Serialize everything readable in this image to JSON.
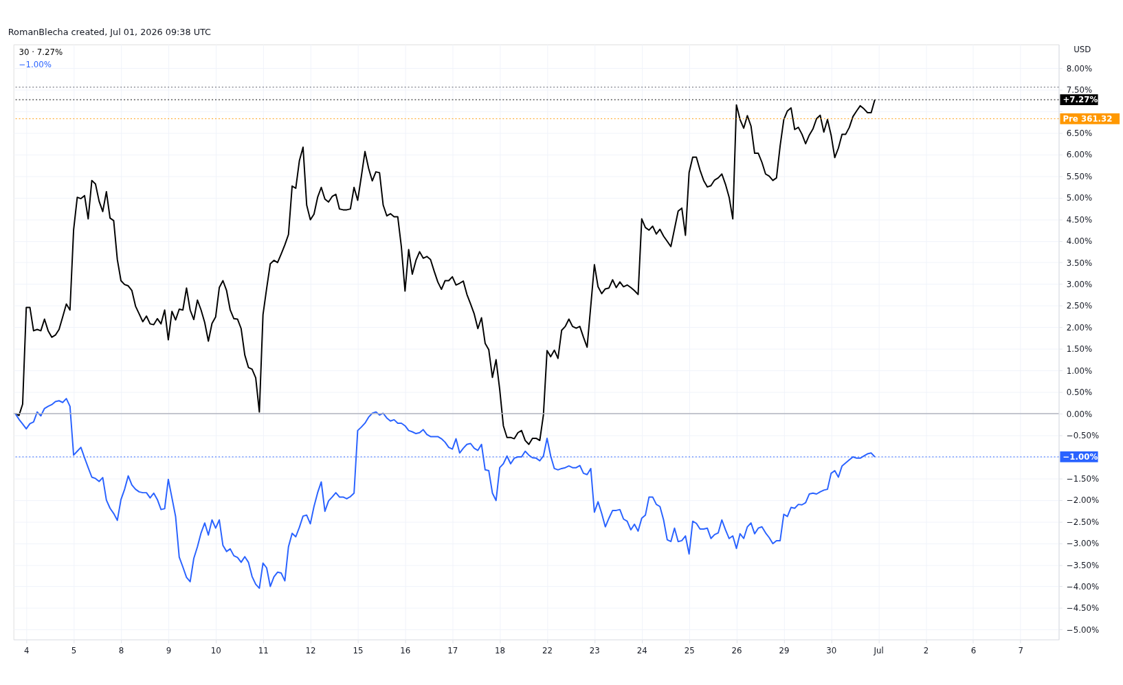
{
  "chart_data": {
    "type": "line",
    "annotations": [
      "RomanBlecha created, Jul 01, 2026 09:38 UTC",
      "30 · 7.27%",
      "−1.00%",
      "USD"
    ],
    "categories": [
      null,
      null,
      null,
      "4",
      null,
      null,
      null,
      null,
      null,
      null,
      null,
      null,
      null,
      null,
      null,
      null,
      "5",
      null,
      null,
      null,
      null,
      null,
      null,
      null,
      null,
      null,
      null,
      null,
      null,
      "8",
      null,
      null,
      null,
      null,
      null,
      null,
      null,
      null,
      null,
      null,
      null,
      null,
      "9",
      null,
      null,
      null,
      null,
      null,
      null,
      null,
      null,
      null,
      null,
      null,
      null,
      "10",
      null,
      null,
      null,
      null,
      null,
      null,
      null,
      null,
      null,
      null,
      null,
      null,
      "11",
      null,
      null,
      null,
      null,
      null,
      null,
      null,
      null,
      null,
      null,
      null,
      null,
      "12",
      null,
      null,
      null,
      null,
      null,
      null,
      null,
      null,
      null,
      null,
      null,
      null,
      "15",
      null,
      null,
      null,
      null,
      null,
      null,
      null,
      null,
      null,
      null,
      null,
      null,
      "16",
      null,
      null,
      null,
      null,
      null,
      null,
      null,
      null,
      null,
      null,
      null,
      null,
      "17",
      null,
      null,
      null,
      null,
      null,
      null,
      null,
      null,
      null,
      null,
      null,
      null,
      "18",
      null,
      null,
      null,
      null,
      null,
      null,
      null,
      null,
      null,
      null,
      null,
      null,
      "22",
      null,
      null,
      null,
      null,
      null,
      null,
      null,
      null,
      null,
      null,
      null,
      null,
      "23",
      null,
      null,
      null,
      null,
      null,
      null,
      null,
      null,
      null,
      null,
      null,
      null,
      "24",
      null,
      null,
      null,
      null,
      null,
      null,
      null,
      null,
      null,
      null,
      null,
      null,
      "25",
      null,
      null,
      null,
      null,
      null,
      null,
      null,
      null,
      null,
      null,
      null,
      null,
      "26",
      null,
      null,
      null,
      null,
      null,
      null,
      null,
      null,
      null,
      null,
      null,
      null,
      "29",
      null,
      null,
      null,
      null,
      null,
      null,
      null,
      null,
      null,
      null,
      null,
      null,
      "30",
      null,
      null,
      null,
      null,
      null,
      null,
      null,
      null,
      null,
      null,
      null,
      null,
      "Jul",
      null,
      null,
      null,
      null,
      null,
      null,
      null,
      null,
      null,
      null,
      null,
      null,
      "2",
      null,
      null,
      null,
      null,
      null,
      null,
      null,
      null,
      null,
      null,
      null,
      null,
      "6",
      null,
      null,
      null,
      null,
      null,
      null,
      null,
      null,
      null,
      null,
      null,
      null,
      "7",
      null,
      null,
      null,
      null,
      null,
      null,
      null,
      null,
      null,
      null
    ],
    "ylim": [
      -5.23,
      8.55
    ],
    "yticks": [
      {
        "value": -5,
        "label": "−5.00%"
      },
      {
        "value": -4.5,
        "label": "−4.50%"
      },
      {
        "value": -4,
        "label": "−4.00%"
      },
      {
        "value": -3.5,
        "label": "−3.50%"
      },
      {
        "value": -3,
        "label": "−3.00%"
      },
      {
        "value": -2.5,
        "label": "−2.50%"
      },
      {
        "value": -2,
        "label": "−2.00%"
      },
      {
        "value": -1.5,
        "label": "−1.50%"
      },
      {
        "value": -1,
        "label": null
      },
      {
        "value": -0.5,
        "label": "−0.50%"
      },
      {
        "value": 0,
        "label": "0.00%"
      },
      {
        "value": 0.5,
        "label": "0.50%"
      },
      {
        "value": 1,
        "label": "1.00%"
      },
      {
        "value": 1.5,
        "label": "1.50%"
      },
      {
        "value": 2,
        "label": "2.00%"
      },
      {
        "value": 2.5,
        "label": "2.50%"
      },
      {
        "value": 3,
        "label": "3.00%"
      },
      {
        "value": 3.5,
        "label": "3.50%"
      },
      {
        "value": 4,
        "label": "4.00%"
      },
      {
        "value": 4.5,
        "label": "4.50%"
      },
      {
        "value": 5,
        "label": "5.00%"
      },
      {
        "value": 5.5,
        "label": "5.50%"
      },
      {
        "value": 6,
        "label": "6.00%"
      },
      {
        "value": 6.5,
        "label": "6.50%"
      },
      {
        "value": 7,
        "label": null
      },
      {
        "value": 7.5,
        "label": "7.50%"
      },
      {
        "value": 8,
        "label": "8.00%"
      }
    ],
    "grid": true,
    "marker": "none",
    "line_style": "solid",
    "ref_lines": [
      {
        "axis": "y",
        "value": 0,
        "label": null,
        "color": "#b2b5be",
        "line_style": "solid"
      },
      {
        "axis": "y",
        "value": 7.56,
        "label": null,
        "color": "#787b86",
        "line_style": "dotted"
      },
      {
        "axis": "y",
        "value": 7.27,
        "label": "+7.27%",
        "color": "#000000",
        "line_style": "dotted"
      },
      {
        "axis": "y",
        "value": 6.83,
        "label": "Pre 361.32",
        "color": "#ff9800",
        "line_style": "dotted"
      },
      {
        "axis": "y",
        "value": -1.0,
        "label": "−1.00%",
        "color": "#2962ff",
        "line_style": "dotted"
      }
    ],
    "series": [
      {
        "color": "#000000",
        "values": [
          0,
          -0.04,
          0.22,
          2.46,
          2.46,
          1.92,
          1.95,
          1.92,
          2.19,
          1.92,
          1.77,
          1.82,
          1.95,
          2.24,
          2.54,
          2.4,
          4.26,
          5.01,
          4.98,
          5.05,
          4.51,
          5.4,
          5.32,
          4.92,
          4.68,
          5.14,
          4.53,
          4.47,
          3.57,
          3.08,
          2.99,
          2.96,
          2.85,
          2.49,
          2.31,
          2.13,
          2.26,
          2.08,
          2.06,
          2.2,
          2.08,
          2.4,
          1.71,
          2.37,
          2.17,
          2.42,
          2.4,
          2.91,
          2.4,
          2.18,
          2.63,
          2.4,
          2.11,
          1.68,
          2.09,
          2.24,
          2.92,
          3.08,
          2.85,
          2.4,
          2.2,
          2.19,
          1.97,
          1.36,
          1.07,
          1.03,
          0.83,
          0.04,
          2.29,
          2.9,
          3.47,
          3.55,
          3.5,
          3.7,
          3.91,
          4.15,
          5.27,
          5.22,
          5.86,
          6.17,
          4.83,
          4.49,
          4.62,
          5.01,
          5.24,
          4.97,
          4.9,
          5.03,
          5.08,
          4.74,
          4.72,
          4.72,
          4.74,
          5.24,
          4.94,
          5.49,
          6.07,
          5.68,
          5.39,
          5.6,
          5.58,
          4.83,
          4.58,
          4.63,
          4.56,
          4.56,
          3.86,
          2.84,
          3.8,
          3.23,
          3.55,
          3.75,
          3.6,
          3.64,
          3.57,
          3.3,
          3.05,
          2.88,
          3.08,
          3.08,
          3.17,
          2.98,
          3.02,
          3.07,
          2.76,
          2.54,
          2.31,
          1.97,
          2.22,
          1.63,
          1.48,
          0.84,
          1.25,
          0.56,
          -0.28,
          -0.55,
          -0.55,
          -0.58,
          -0.44,
          -0.39,
          -0.62,
          -0.71,
          -0.57,
          -0.57,
          -0.62,
          -0.03,
          1.46,
          1.32,
          1.47,
          1.28,
          1.93,
          2.02,
          2.19,
          2.02,
          1.98,
          2.02,
          1.77,
          1.54,
          2.49,
          3.45,
          2.94,
          2.78,
          2.89,
          2.91,
          3.1,
          2.92,
          3.05,
          2.94,
          2.98,
          2.92,
          2.85,
          2.76,
          4.51,
          4.31,
          4.25,
          4.34,
          4.16,
          4.27,
          4.11,
          3.99,
          3.87,
          4.28,
          4.69,
          4.76,
          4.13,
          5.58,
          5.94,
          5.94,
          5.64,
          5.4,
          5.25,
          5.28,
          5.41,
          5.46,
          5.55,
          5.31,
          5.01,
          4.51,
          7.15,
          6.81,
          6.61,
          6.9,
          6.66,
          6.03,
          6.03,
          5.82,
          5.55,
          5.5,
          5.4,
          5.46,
          6.2,
          6.81,
          7.01,
          7.08,
          6.58,
          6.63,
          6.47,
          6.25,
          6.45,
          6.59,
          6.83,
          6.91,
          6.52,
          6.81,
          6.45,
          5.93,
          6.15,
          6.47,
          6.47,
          6.63,
          6.88,
          7.01,
          7.13,
          7.06,
          6.97,
          6.97,
          7.27,
          null,
          null,
          null,
          null,
          null,
          null,
          null,
          null,
          null,
          null,
          null,
          null,
          null,
          null,
          null,
          null,
          null,
          null,
          null,
          null,
          null,
          null,
          null,
          null,
          null,
          null,
          null,
          null,
          null,
          null,
          null,
          null,
          null,
          null,
          null,
          null,
          null,
          null,
          null,
          null,
          null,
          null,
          null,
          null,
          null,
          null,
          null,
          null,
          null,
          null
        ]
      },
      {
        "color": "#2962ff",
        "values": [
          0,
          -0.13,
          -0.24,
          -0.35,
          -0.23,
          -0.19,
          0.04,
          -0.05,
          0.12,
          0.17,
          0.21,
          0.28,
          0.3,
          0.26,
          0.35,
          0.17,
          -0.96,
          -0.87,
          -0.78,
          -1.02,
          -1.25,
          -1.47,
          -1.5,
          -1.57,
          -1.48,
          -2.0,
          -2.19,
          -2.31,
          -2.47,
          -1.99,
          -1.75,
          -1.44,
          -1.65,
          -1.75,
          -1.81,
          -1.83,
          -1.83,
          -1.95,
          -1.84,
          -1.99,
          -2.22,
          -2.2,
          -1.52,
          -1.95,
          -2.38,
          -3.32,
          -3.55,
          -3.79,
          -3.89,
          -3.35,
          -3.08,
          -2.76,
          -2.53,
          -2.81,
          -2.46,
          -2.65,
          -2.46,
          -3.05,
          -3.19,
          -3.13,
          -3.29,
          -3.33,
          -3.44,
          -3.31,
          -3.44,
          -3.77,
          -3.95,
          -4.04,
          -3.46,
          -3.57,
          -4.0,
          -3.78,
          -3.67,
          -3.69,
          -3.87,
          -3.08,
          -2.77,
          -2.85,
          -2.63,
          -2.37,
          -2.35,
          -2.55,
          -2.15,
          -1.83,
          -1.58,
          -2.26,
          -2.02,
          -1.93,
          -1.83,
          -1.93,
          -1.93,
          -1.97,
          -1.92,
          -1.84,
          -0.39,
          -0.31,
          -0.22,
          -0.08,
          0.01,
          0.04,
          -0.03,
          0.01,
          -0.1,
          -0.17,
          -0.14,
          -0.22,
          -0.22,
          -0.28,
          -0.39,
          -0.42,
          -0.46,
          -0.44,
          -0.37,
          -0.48,
          -0.53,
          -0.53,
          -0.53,
          -0.58,
          -0.66,
          -0.78,
          -0.82,
          -0.58,
          -0.91,
          -0.8,
          -0.71,
          -0.69,
          -0.8,
          -0.85,
          -0.71,
          -1.3,
          -1.32,
          -1.84,
          -2.01,
          -1.25,
          -1.16,
          -0.98,
          -1.16,
          -1.03,
          -1.0,
          -1.0,
          -0.87,
          -0.96,
          -1.02,
          -1.03,
          -1.09,
          -0.98,
          -0.57,
          -0.98,
          -1.27,
          -1.3,
          -1.27,
          -1.25,
          -1.21,
          -1.25,
          -1.25,
          -1.2,
          -1.38,
          -1.41,
          -1.27,
          -2.28,
          -2.04,
          -2.31,
          -2.62,
          -2.42,
          -2.24,
          -2.24,
          -2.22,
          -2.44,
          -2.49,
          -2.69,
          -2.56,
          -2.72,
          -2.42,
          -2.35,
          -1.93,
          -1.93,
          -2.1,
          -2.15,
          -2.46,
          -2.92,
          -2.96,
          -2.65,
          -2.96,
          -2.94,
          -2.83,
          -3.25,
          -2.49,
          -2.54,
          -2.67,
          -2.67,
          -2.65,
          -2.89,
          -2.8,
          -2.76,
          -2.46,
          -2.69,
          -2.89,
          -2.83,
          -3.12,
          -2.78,
          -2.89,
          -2.62,
          -2.53,
          -2.78,
          -2.65,
          -2.62,
          -2.76,
          -2.87,
          -3.01,
          -2.94,
          -2.94,
          -2.33,
          -2.38,
          -2.17,
          -2.19,
          -2.1,
          -2.11,
          -2.06,
          -1.86,
          -1.84,
          -1.86,
          -1.81,
          -1.77,
          -1.75,
          -1.38,
          -1.32,
          -1.47,
          -1.21,
          -1.14,
          -1.07,
          -1.0,
          -1.03,
          -1.03,
          -0.98,
          -0.93,
          -0.91,
          -1.0,
          null,
          null,
          null,
          null,
          null,
          null,
          null,
          null,
          null,
          null,
          null,
          null,
          null,
          null,
          null,
          null,
          null,
          null,
          null,
          null,
          null,
          null,
          null,
          null,
          null,
          null,
          null,
          null,
          null,
          null,
          null,
          null,
          null,
          null,
          null,
          null,
          null,
          null,
          null,
          null,
          null,
          null,
          null,
          null,
          null,
          null,
          null,
          null,
          null,
          null
        ]
      }
    ]
  }
}
